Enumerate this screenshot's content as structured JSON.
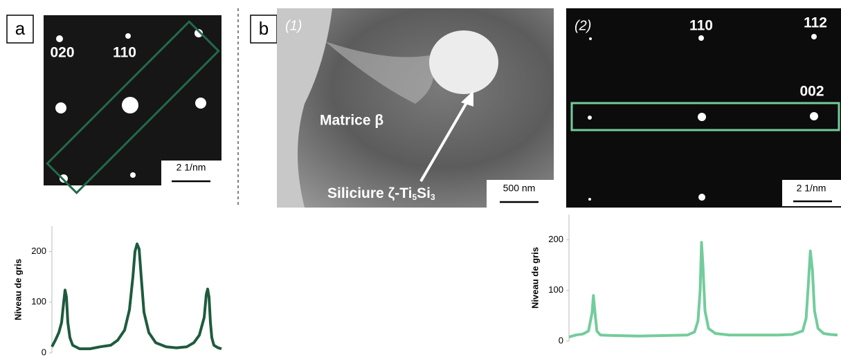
{
  "panel_a": {
    "label": "a",
    "spot_020": "020",
    "spot_110": "110",
    "scale": "2 1/nm"
  },
  "panel_b": {
    "label": "b",
    "image1_label": "(1)",
    "matrix": "Matrice β",
    "silicide": {
      "text": "Siliciure ζ-Ti",
      "sub1": "5",
      "mid": "Si",
      "sub2": "3"
    },
    "scale1": "500 nm",
    "image2_label": "(2)",
    "spot_110": "110",
    "spot_112": "112",
    "spot_002": "002",
    "scale2": "2 1/nm"
  },
  "chart_data": [
    {
      "type": "line",
      "ylabel": "Niveau de gris",
      "color": "#1e5b3e",
      "x": [
        0,
        5,
        10,
        14,
        17,
        19,
        21,
        23,
        26,
        30,
        40,
        55,
        70,
        85,
        95,
        105,
        112,
        117,
        120,
        123,
        126,
        129,
        133,
        140,
        150,
        165,
        180,
        195,
        205,
        213,
        220,
        223,
        225,
        227,
        229,
        231,
        234,
        240,
        245
      ],
      "values": [
        12,
        25,
        40,
        60,
        100,
        124,
        110,
        60,
        30,
        15,
        8,
        8,
        12,
        15,
        25,
        45,
        85,
        150,
        200,
        215,
        205,
        150,
        80,
        40,
        20,
        12,
        10,
        12,
        20,
        35,
        70,
        115,
        126,
        110,
        60,
        30,
        15,
        10,
        8
      ],
      "xlim": [
        0,
        245
      ],
      "ylim": [
        0,
        250
      ],
      "yticks": [
        0,
        100,
        200
      ]
    },
    {
      "type": "line",
      "ylabel": "Niveau de gris",
      "color": "#73cc9c",
      "x": [
        0,
        10,
        20,
        28,
        33,
        35,
        37,
        40,
        45,
        60,
        100,
        140,
        170,
        180,
        185,
        188,
        190,
        192,
        195,
        200,
        210,
        230,
        270,
        300,
        320,
        335,
        340,
        343,
        346,
        349,
        352,
        357,
        365,
        375,
        385
      ],
      "values": [
        8,
        12,
        14,
        20,
        55,
        90,
        60,
        20,
        12,
        11,
        10,
        11,
        12,
        18,
        40,
        100,
        195,
        150,
        60,
        25,
        15,
        12,
        12,
        12,
        13,
        20,
        45,
        110,
        178,
        140,
        60,
        25,
        15,
        13,
        12
      ],
      "xlim": [
        0,
        385
      ],
      "ylim": [
        0,
        250
      ],
      "yticks": [
        0,
        100,
        200
      ]
    }
  ]
}
